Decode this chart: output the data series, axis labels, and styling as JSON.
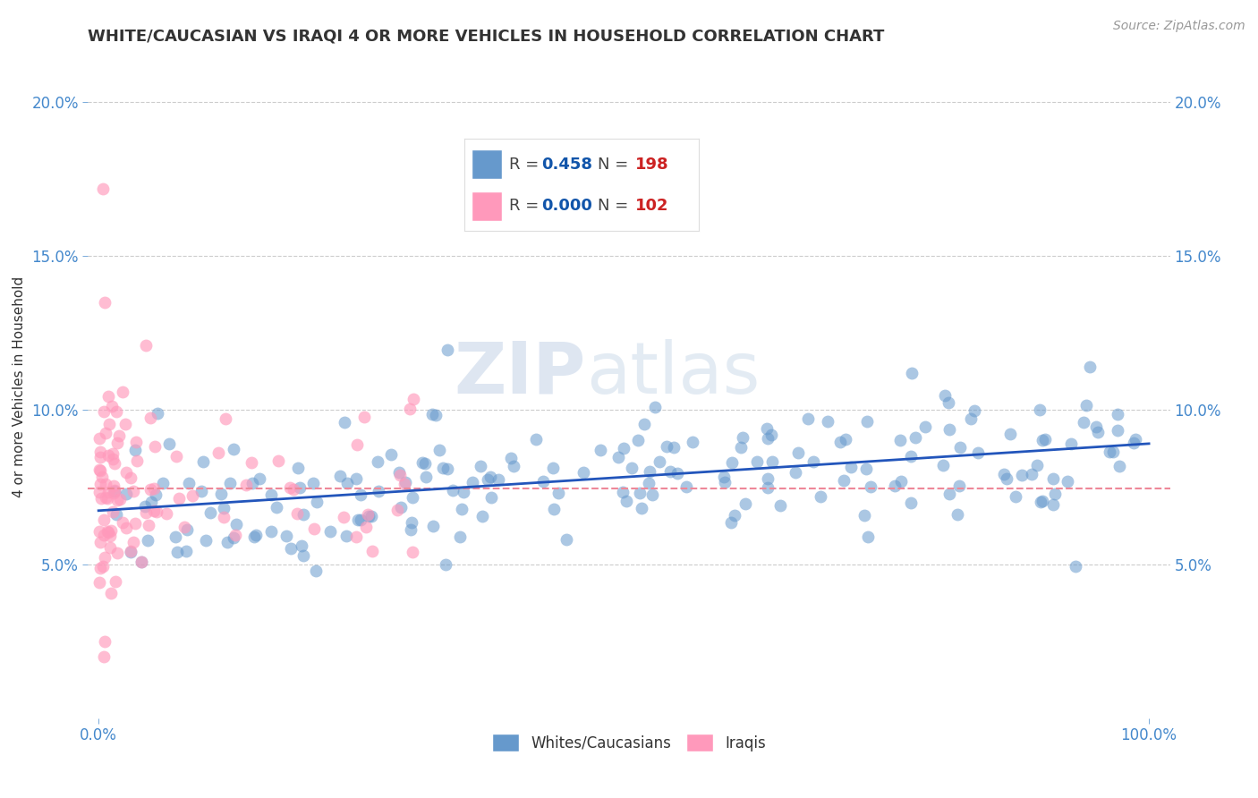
{
  "title": "WHITE/CAUCASIAN VS IRAQI 4 OR MORE VEHICLES IN HOUSEHOLD CORRELATION CHART",
  "source": "Source: ZipAtlas.com",
  "ylabel": "4 or more Vehicles in Household",
  "watermark_zip": "ZIP",
  "watermark_atlas": "atlas",
  "legend_label1": "Whites/Caucasians",
  "legend_label2": "Iraqis",
  "R_white": 0.458,
  "N_white": 198,
  "R_iraqi": 0.0,
  "N_iraqi": 102,
  "blue_color": "#6699CC",
  "pink_color": "#FF99BB",
  "line_blue": "#2255BB",
  "line_pink": "#EE8899",
  "title_color": "#333333",
  "axis_label_color": "#4488CC",
  "legend_R_color": "#1155AA",
  "legend_N_color": "#CC2222",
  "grid_color": "#CCCCCC",
  "background": "#FFFFFF",
  "seed": 42
}
